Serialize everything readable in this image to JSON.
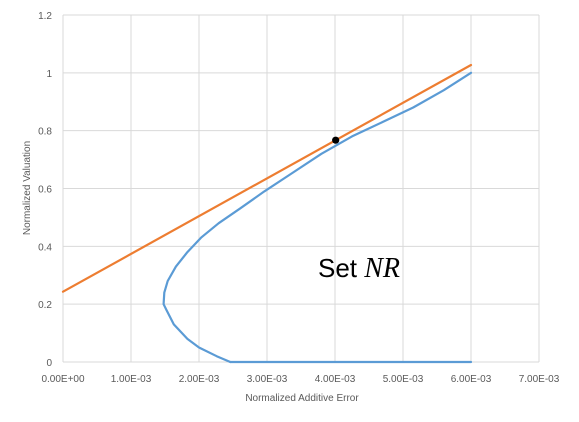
{
  "chart_data": {
    "type": "scatter",
    "title": "",
    "xlabel": "Normalized Additive Error",
    "ylabel": "Normalized Valuation",
    "xlim": [
      0,
      0.007
    ],
    "ylim": [
      0,
      1.2
    ],
    "x_tick_labels": [
      "0.00E+00",
      "1.00E-03",
      "2.00E-03",
      "3.00E-03",
      "4.00E-03",
      "5.00E-03",
      "6.00E-03",
      "7.00E-03"
    ],
    "y_tick_labels": [
      "0",
      "0.2",
      "0.4",
      "0.6",
      "0.8",
      "1",
      "1.2"
    ],
    "grid": true,
    "legend": "none",
    "annotation": {
      "text": "Set ",
      "math": "NR"
    },
    "series": [
      {
        "color": "#5B9BD5",
        "mode": "line",
        "points": [
          [
            0.00246,
            0.0
          ],
          [
            0.00226,
            0.02
          ],
          [
            0.002,
            0.05
          ],
          [
            0.00183,
            0.08
          ],
          [
            0.00163,
            0.13
          ],
          [
            0.00152,
            0.18
          ],
          [
            0.00148,
            0.2
          ],
          [
            0.00149,
            0.24
          ],
          [
            0.00154,
            0.28
          ],
          [
            0.00166,
            0.33
          ],
          [
            0.00183,
            0.38
          ],
          [
            0.00203,
            0.43
          ],
          [
            0.00229,
            0.48
          ],
          [
            0.0026,
            0.53
          ],
          [
            0.00296,
            0.59
          ],
          [
            0.00335,
            0.65
          ],
          [
            0.0038,
            0.72
          ],
          [
            0.00425,
            0.78
          ],
          [
            0.0047,
            0.83
          ],
          [
            0.00515,
            0.88
          ],
          [
            0.0056,
            0.94
          ],
          [
            0.006,
            1.0
          ]
        ]
      },
      {
        "color": "#5B9BD5",
        "mode": "line",
        "points": [
          [
            0.00246,
            0.0
          ],
          [
            0.006,
            0.0
          ]
        ]
      },
      {
        "color": "#ED7D31",
        "mode": "line",
        "points": [
          [
            0.0,
            0.243
          ],
          [
            0.006,
            1.027
          ]
        ]
      },
      {
        "color": "#000000",
        "mode": "marker",
        "points": [
          [
            0.00401,
            0.767
          ]
        ]
      }
    ]
  }
}
